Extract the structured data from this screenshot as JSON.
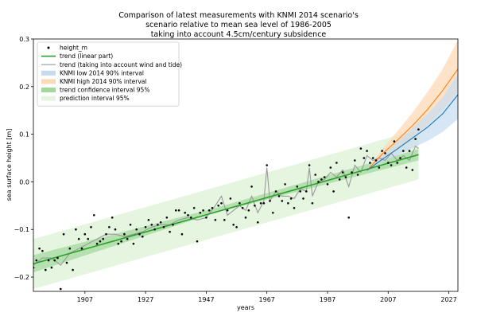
{
  "chart_data": {
    "type": "line",
    "title_lines": [
      "Comparison of latest measurements with KNMI 2014 scenario's",
      "scenario relative to mean sea level of 1986-2005",
      "taking into account 4.5cm/century subsidence"
    ],
    "xlabel": "years",
    "ylabel": "sea surface height [m]",
    "xlim": [
      1890,
      2030
    ],
    "ylim": [
      -0.23,
      0.3
    ],
    "x_ticks": [
      1907,
      1927,
      1947,
      1967,
      1987,
      2007,
      2027
    ],
    "y_ticks": [
      -0.2,
      -0.1,
      0.0,
      0.1,
      0.2,
      0.3
    ],
    "y_tick_labels": [
      "−0.2",
      "−0.1",
      "0.0",
      "0.1",
      "0.2",
      "0.3"
    ],
    "legend": {
      "position": "upper-left",
      "entries": [
        "height_m",
        "trend (linear part)",
        "trend (taking into account wind and tide)",
        "KNMI low 2014 90% interval",
        "KNMI high 2014 90% interval",
        "trend confidence interval 95%",
        "prediction interval 95%"
      ]
    },
    "colors": {
      "points": "#000000",
      "linear_trend": "#2ca02c",
      "wind_tide_trend": "#999999",
      "knmi_low": "#1f77b4",
      "knmi_low_band": "#c6dbef",
      "knmi_high": "#ff7f0e",
      "knmi_high_band": "#fdd9b5",
      "confidence_band": "#a1d99b",
      "prediction_band": "#e5f5e0"
    },
    "linear_trend": {
      "x": [
        1890,
        2017
      ],
      "y": [
        -0.172,
        0.057
      ]
    },
    "confidence_interval": {
      "x": [
        1890,
        1950,
        2017
      ],
      "lower": [
        -0.19,
        -0.065,
        0.045
      ],
      "upper": [
        -0.154,
        -0.055,
        0.069
      ]
    },
    "prediction_interval": {
      "x": [
        1890,
        2017
      ],
      "lower": [
        -0.225,
        0.005
      ],
      "upper": [
        -0.12,
        0.11
      ]
    },
    "knmi_low": {
      "x": [
        2000,
        2005,
        2010,
        2015,
        2020,
        2025,
        2030
      ],
      "y": [
        0.024,
        0.047,
        0.069,
        0.092,
        0.115,
        0.143,
        0.183
      ],
      "lower": [
        0.024,
        0.04,
        0.056,
        0.071,
        0.086,
        0.105,
        0.132
      ],
      "upper": [
        0.024,
        0.055,
        0.084,
        0.113,
        0.143,
        0.178,
        0.228
      ]
    },
    "knmi_high": {
      "x": [
        2000,
        2005,
        2010,
        2015,
        2020,
        2025,
        2030
      ],
      "y": [
        0.024,
        0.058,
        0.087,
        0.118,
        0.152,
        0.192,
        0.237
      ],
      "lower": [
        0.024,
        0.048,
        0.07,
        0.093,
        0.12,
        0.152,
        0.188
      ],
      "upper": [
        0.024,
        0.068,
        0.106,
        0.145,
        0.189,
        0.237,
        0.298
      ]
    },
    "height_m": {
      "x": [
        1890,
        1891,
        1892,
        1893,
        1894,
        1895,
        1896,
        1897,
        1898,
        1899,
        1900,
        1901,
        1902,
        1903,
        1904,
        1905,
        1906,
        1907,
        1908,
        1909,
        1910,
        1911,
        1912,
        1913,
        1914,
        1915,
        1916,
        1917,
        1918,
        1919,
        1920,
        1921,
        1922,
        1923,
        1924,
        1925,
        1926,
        1927,
        1928,
        1929,
        1930,
        1931,
        1932,
        1933,
        1934,
        1935,
        1936,
        1937,
        1938,
        1939,
        1940,
        1941,
        1942,
        1943,
        1944,
        1945,
        1946,
        1947,
        1948,
        1949,
        1950,
        1951,
        1952,
        1953,
        1954,
        1955,
        1956,
        1957,
        1958,
        1959,
        1960,
        1961,
        1962,
        1963,
        1964,
        1965,
        1966,
        1967,
        1968,
        1969,
        1970,
        1971,
        1972,
        1973,
        1974,
        1975,
        1976,
        1977,
        1978,
        1979,
        1980,
        1981,
        1982,
        1983,
        1984,
        1985,
        1986,
        1987,
        1988,
        1989,
        1990,
        1991,
        1992,
        1993,
        1994,
        1995,
        1996,
        1997,
        1998,
        1999,
        2000,
        2001,
        2002,
        2003,
        2004,
        2005,
        2006,
        2007,
        2008,
        2009,
        2010,
        2011,
        2012,
        2013,
        2014,
        2015,
        2016,
        2017
      ],
      "y": [
        -0.18,
        -0.165,
        -0.14,
        -0.145,
        -0.185,
        -0.165,
        -0.18,
        -0.165,
        -0.16,
        -0.225,
        -0.11,
        -0.17,
        -0.14,
        -0.185,
        -0.1,
        -0.12,
        -0.14,
        -0.11,
        -0.12,
        -0.095,
        -0.07,
        -0.13,
        -0.125,
        -0.12,
        -0.11,
        -0.095,
        -0.075,
        -0.1,
        -0.13,
        -0.125,
        -0.11,
        -0.12,
        -0.09,
        -0.13,
        -0.1,
        -0.11,
        -0.115,
        -0.095,
        -0.08,
        -0.09,
        -0.1,
        -0.09,
        -0.085,
        -0.095,
        -0.075,
        -0.105,
        -0.09,
        -0.06,
        -0.06,
        -0.11,
        -0.065,
        -0.07,
        -0.075,
        -0.055,
        -0.125,
        -0.065,
        -0.06,
        -0.075,
        -0.06,
        -0.055,
        -0.08,
        -0.05,
        -0.045,
        -0.08,
        -0.06,
        -0.035,
        -0.09,
        -0.095,
        -0.045,
        -0.055,
        -0.075,
        -0.06,
        -0.01,
        -0.05,
        -0.085,
        -0.045,
        -0.045,
        0.035,
        -0.04,
        -0.065,
        -0.02,
        -0.03,
        -0.04,
        -0.005,
        -0.045,
        -0.035,
        -0.055,
        -0.01,
        -0.02,
        -0.035,
        -0.02,
        0.035,
        -0.045,
        0.015,
        0.0,
        0.005,
        0.01,
        -0.005,
        0.03,
        -0.02,
        0.04,
        0.005,
        0.02,
        0.01,
        -0.075,
        0.02,
        0.045,
        0.015,
        0.07,
        0.05,
        0.065,
        0.04,
        0.05,
        0.045,
        0.03,
        0.065,
        0.06,
        0.04,
        0.035,
        0.085,
        0.04,
        0.05,
        0.065,
        0.03,
        0.065,
        0.025,
        0.09,
        0.11
      ]
    },
    "wind_tide_trend": {
      "x": [
        1890,
        1893,
        1896,
        1899,
        1902,
        1905,
        1908,
        1911,
        1914,
        1917,
        1920,
        1923,
        1926,
        1929,
        1932,
        1935,
        1938,
        1941,
        1944,
        1947,
        1950,
        1952,
        1954,
        1956,
        1958,
        1960,
        1962,
        1964,
        1966,
        1967,
        1968,
        1970,
        1972,
        1974,
        1976,
        1978,
        1980,
        1981,
        1982,
        1984,
        1986,
        1988,
        1990,
        1992,
        1994,
        1996,
        1998,
        2000,
        2002,
        2004,
        2006,
        2008,
        2010,
        2012,
        2014,
        2016,
        2017
      ],
      "y": [
        -0.175,
        -0.16,
        -0.16,
        -0.175,
        -0.15,
        -0.14,
        -0.13,
        -0.12,
        -0.11,
        -0.11,
        -0.115,
        -0.11,
        -0.105,
        -0.095,
        -0.09,
        -0.09,
        -0.08,
        -0.075,
        -0.08,
        -0.075,
        -0.05,
        -0.03,
        -0.07,
        -0.06,
        -0.05,
        -0.06,
        -0.03,
        -0.065,
        -0.04,
        0.03,
        -0.04,
        -0.02,
        -0.03,
        -0.03,
        -0.035,
        -0.015,
        -0.02,
        0.03,
        -0.03,
        0.0,
        0.005,
        0.02,
        0.01,
        0.025,
        -0.01,
        0.035,
        0.02,
        0.055,
        0.045,
        0.05,
        0.045,
        0.06,
        0.045,
        0.055,
        0.045,
        0.075,
        0.07
      ]
    }
  }
}
